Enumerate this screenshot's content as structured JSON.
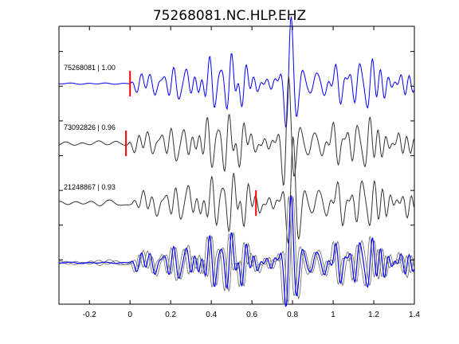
{
  "chart_data": {
    "type": "line",
    "title": "75268081.NC.HLP.EHZ",
    "xlabel": "",
    "ylabel": "",
    "xlim": [
      -0.35,
      1.4
    ],
    "x_ticks": [
      -0.2,
      0,
      0.2,
      0.4,
      0.6,
      0.8,
      1.0,
      1.2,
      1.4
    ],
    "x_tick_labels": [
      "-0.2",
      "0",
      "0.2",
      "0.4",
      "0.6",
      "0.8",
      "1",
      "1.2",
      "1.4"
    ],
    "y_tick_count": 7,
    "grid": false,
    "legend": "none",
    "colors": {
      "reference": "#0000ff",
      "match": "#333333",
      "pick": "#ff0000",
      "axis": "#000000"
    },
    "series": [
      {
        "label": "75268081 | 1.00",
        "color": "#0000ff",
        "pick_x": 0.0,
        "seed": 3,
        "lag": 0.0
      },
      {
        "label": "73092826 | 0.96",
        "color": "#333333",
        "pick_x": -0.02,
        "seed": 17,
        "lag": 0.012
      },
      {
        "label": "21248867 | 0.93",
        "color": "#333333",
        "pick_x": 0.62,
        "seed": 29,
        "lag": -0.01
      }
    ],
    "overlay": {
      "series": [
        0,
        1,
        2
      ]
    }
  }
}
